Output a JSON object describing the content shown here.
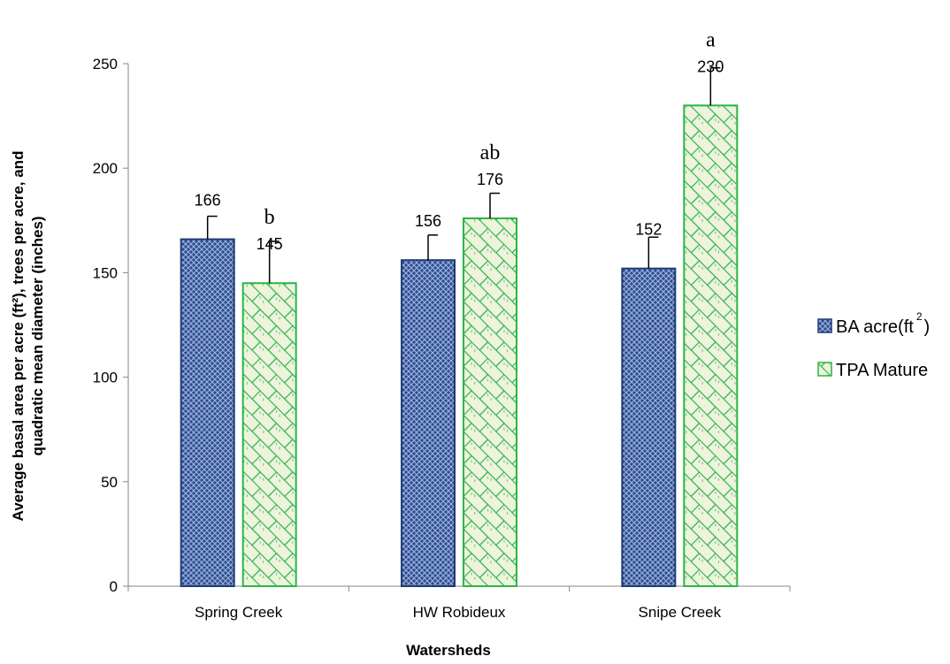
{
  "chart_data": {
    "type": "bar",
    "categories": [
      "Spring Creek",
      "HW Robideux",
      "Snipe Creek"
    ],
    "series": [
      {
        "name": "BA acre(ft2)",
        "legend_base": "BA acre(ft",
        "legend_sup": "2",
        "legend_close": ")",
        "values": [
          166,
          156,
          152
        ],
        "value_labels": [
          "166",
          "156",
          "152"
        ],
        "error_plus": [
          11,
          12,
          15
        ],
        "significance": [
          "",
          "",
          ""
        ],
        "color": "#2e4a8a",
        "pattern": "crosshatch"
      },
      {
        "name": "TPA Mature",
        "legend_base": "TPA Mature",
        "legend_sup": "",
        "legend_close": "",
        "values": [
          145,
          176,
          230
        ],
        "value_labels": [
          "145",
          "176",
          "230"
        ],
        "error_plus": [
          20,
          12,
          18
        ],
        "significance": [
          "b",
          "ab",
          "a"
        ],
        "color": "#2db34a",
        "pattern": "brick"
      }
    ],
    "xlabel": "Watersheds",
    "ylabel_line1": "Average basal area per acre (ft²), trees per acre, and",
    "ylabel_line2": "quadratic mean diameter (inches)",
    "ylim": [
      0,
      250
    ],
    "yticks": [
      0,
      50,
      100,
      150,
      200,
      250
    ],
    "grid": false,
    "legend_position": "right"
  }
}
